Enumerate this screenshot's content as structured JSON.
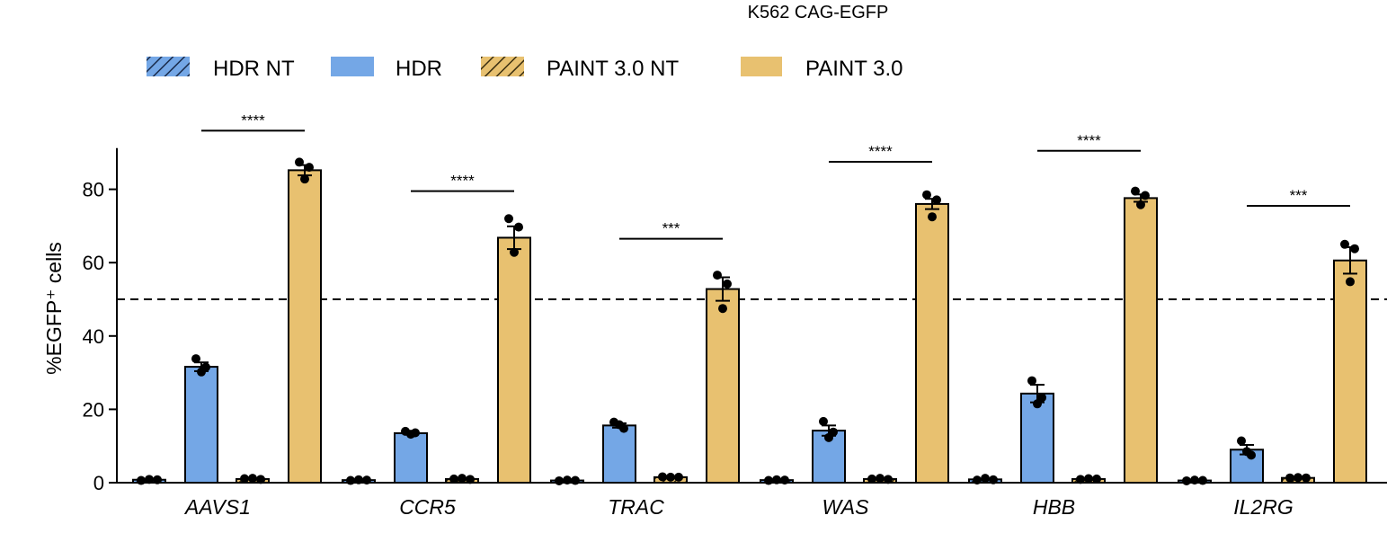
{
  "chart_data": {
    "type": "bar",
    "title": "K562 CAG-EGFP",
    "ylabel": "%EGFP⁺ cells",
    "xlabel": "",
    "ylim": [
      0,
      90
    ],
    "yticks": [
      0,
      20,
      40,
      60,
      80
    ],
    "reference_line": 50,
    "categories": [
      "AAVS1",
      "CCR5",
      "TRAC",
      "WAS",
      "HBB",
      "IL2RG"
    ],
    "legend_position": "top",
    "colors": {
      "HDR": "#74a7e6",
      "PAINT 3.0": "#e8c170",
      "edge": "#000000"
    },
    "series": [
      {
        "name": "HDR NT",
        "color": "#74a7e6",
        "hatched": true,
        "values": [
          0.8,
          0.7,
          0.6,
          0.7,
          0.9,
          0.6
        ],
        "errors": [
          0.2,
          0.1,
          0.1,
          0.1,
          0.2,
          0.1
        ],
        "points": [
          [
            0.6,
            0.9,
            0.8
          ],
          [
            0.6,
            0.8,
            0.7
          ],
          [
            0.5,
            0.7,
            0.6
          ],
          [
            0.6,
            0.8,
            0.7
          ],
          [
            0.7,
            1.2,
            0.8
          ],
          [
            0.5,
            0.7,
            0.6
          ]
        ]
      },
      {
        "name": "HDR",
        "color": "#74a7e6",
        "hatched": false,
        "values": [
          31.6,
          13.5,
          15.6,
          14.2,
          24.3,
          9.0
        ],
        "errors": [
          1.2,
          0.3,
          0.6,
          1.4,
          2.4,
          1.3
        ],
        "points": [
          [
            33.8,
            31.5,
            30.2
          ],
          [
            14.0,
            13.6,
            13.2
          ],
          [
            16.5,
            14.8,
            15.8
          ],
          [
            16.7,
            13.8,
            12.3
          ],
          [
            27.8,
            23.2,
            21.5
          ],
          [
            11.4,
            7.5,
            8.5
          ]
        ]
      },
      {
        "name": "PAINT 3.0 NT",
        "color": "#e8c170",
        "hatched": true,
        "values": [
          1.0,
          1.0,
          1.5,
          1.0,
          1.0,
          1.3
        ],
        "errors": [
          0.1,
          0.1,
          0.1,
          0.1,
          0.1,
          0.1
        ],
        "points": [
          [
            1.1,
            1.2,
            0.9
          ],
          [
            1.0,
            1.2,
            0.9
          ],
          [
            1.6,
            1.5,
            1.5
          ],
          [
            1.0,
            1.2,
            0.9
          ],
          [
            0.9,
            1.1,
            1.0
          ],
          [
            1.3,
            1.4,
            1.3
          ]
        ]
      },
      {
        "name": "PAINT 3.0",
        "color": "#e8c170",
        "hatched": false,
        "values": [
          85.2,
          66.8,
          52.8,
          76.0,
          77.6,
          60.6
        ],
        "errors": [
          1.4,
          3.1,
          3.2,
          1.4,
          1.0,
          3.6
        ],
        "points": [
          [
            87.4,
            86.0,
            82.8
          ],
          [
            72.0,
            69.7,
            62.8
          ],
          [
            56.6,
            54.2,
            47.5
          ],
          [
            78.5,
            77.1,
            72.5
          ],
          [
            79.5,
            78.3,
            75.8
          ],
          [
            65.0,
            63.8,
            54.8
          ]
        ]
      }
    ],
    "significance": [
      {
        "category": "AAVS1",
        "label": "****",
        "y": 96
      },
      {
        "category": "CCR5",
        "label": "****",
        "y": 79.5
      },
      {
        "category": "TRAC",
        "label": "***",
        "y": 66.5
      },
      {
        "category": "WAS",
        "label": "****",
        "y": 87.5
      },
      {
        "category": "HBB",
        "label": "****",
        "y": 90.5
      },
      {
        "category": "IL2RG",
        "label": "***",
        "y": 75.5
      }
    ]
  }
}
